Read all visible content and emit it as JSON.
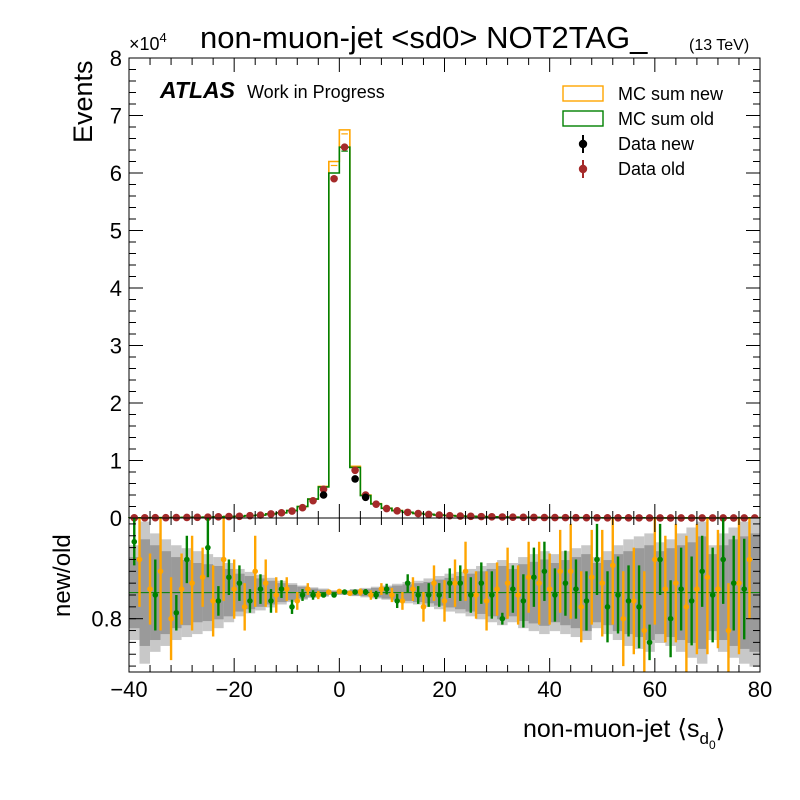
{
  "chart_data": [
    {
      "type": "histogram",
      "title": "non-muon-jet <sd0> NOT2TAG_",
      "energy_label": "(13 TeV)",
      "atlas_label": "ATLAS",
      "atlas_sublabel": "Work in Progress",
      "exponent_label": "×10",
      "exponent_power": "4",
      "ylabel": "Events",
      "xlim": [
        -40,
        80
      ],
      "ylim": [
        0,
        80000
      ],
      "y_ticks": [
        0,
        1,
        2,
        3,
        4,
        5,
        6,
        7,
        8
      ],
      "legend_position": "top-right",
      "legend": [
        {
          "label": "MC sum new",
          "style": "hist",
          "color": "#ffa500"
        },
        {
          "label": "MC sum old",
          "style": "hist",
          "color": "#008000"
        },
        {
          "label": "Data new",
          "style": "points",
          "color": "#000000"
        },
        {
          "label": "Data old",
          "style": "points",
          "color": "#a52a2a"
        }
      ],
      "bin_edges": [
        -40,
        -38,
        -36,
        -34,
        -32,
        -30,
        -28,
        -26,
        -24,
        -22,
        -20,
        -18,
        -16,
        -14,
        -12,
        -10,
        -8,
        -6,
        -4,
        -2,
        0,
        2,
        4,
        6,
        8,
        10,
        12,
        14,
        16,
        18,
        20,
        22,
        24,
        26,
        28,
        30,
        32,
        34,
        36,
        38,
        40,
        42,
        44,
        46,
        48,
        50,
        52,
        54,
        56,
        58,
        60,
        62,
        64,
        66,
        68,
        70,
        72,
        74,
        76,
        78,
        80
      ],
      "series": [
        {
          "name": "MC sum new",
          "color": "#ffa500",
          "values": [
            30,
            40,
            50,
            60,
            80,
            100,
            120,
            150,
            200,
            250,
            300,
            400,
            500,
            700,
            900,
            1300,
            2000,
            3300,
            5500,
            62000,
            67500,
            9000,
            4000,
            2500,
            1700,
            1300,
            1000,
            800,
            650,
            520,
            420,
            350,
            300,
            250,
            210,
            180,
            150,
            130,
            110,
            90,
            80,
            70,
            60,
            50,
            45,
            40,
            35,
            30,
            25,
            22,
            20,
            18,
            15,
            13,
            11,
            10,
            9,
            8,
            7,
            6
          ]
        },
        {
          "name": "MC sum old",
          "color": "#008000",
          "values": [
            30,
            40,
            50,
            60,
            80,
            100,
            120,
            150,
            200,
            250,
            300,
            400,
            500,
            700,
            900,
            1300,
            2000,
            3300,
            5400,
            60000,
            64500,
            8800,
            3900,
            2450,
            1680,
            1280,
            990,
            790,
            640,
            515,
            415,
            345,
            295,
            245,
            205,
            178,
            148,
            128,
            108,
            88,
            78,
            68,
            59,
            49,
            44,
            39,
            34,
            29,
            24,
            21,
            19,
            17,
            14,
            12,
            10,
            9,
            8,
            7,
            6,
            5
          ]
        }
      ],
      "data_points": [
        {
          "name": "Data new",
          "color": "#000000",
          "x": [
            -3,
            3,
            5
          ],
          "y": [
            4000,
            6800,
            3600
          ]
        },
        {
          "name": "Data old",
          "color": "#a52a2a",
          "x": [
            -39,
            -37,
            -35,
            -33,
            -31,
            -29,
            -27,
            -25,
            -23,
            -21,
            -19,
            -17,
            -15,
            -13,
            -11,
            -9,
            -7,
            -5,
            -3,
            -1,
            1,
            3,
            5,
            7,
            9,
            11,
            13,
            15,
            17,
            19,
            21,
            23,
            25,
            27,
            29,
            31,
            33,
            35,
            37,
            39,
            41,
            43,
            45,
            47,
            49,
            51,
            53,
            55,
            57,
            59,
            61,
            63,
            65,
            67,
            69,
            71,
            73,
            75,
            77,
            79
          ],
          "y": [
            30,
            40,
            50,
            60,
            80,
            100,
            120,
            150,
            200,
            250,
            300,
            400,
            500,
            700,
            900,
            1200,
            1800,
            3000,
            5000,
            59000,
            64500,
            8300,
            4000,
            2400,
            1650,
            1250,
            980,
            780,
            630,
            510,
            410,
            340,
            290,
            240,
            200,
            175,
            145,
            125,
            105,
            86,
            76,
            66,
            57,
            48,
            43,
            38,
            33,
            28,
            23,
            20,
            18,
            16,
            13,
            11,
            9,
            8,
            7,
            6,
            5,
            4
          ]
        }
      ]
    },
    {
      "type": "ratio",
      "ylabel": "new/old",
      "xlabel_main": "non-muon-jet ⟨s",
      "xlabel_sub": "d",
      "xlabel_subsub": "0",
      "xlabel_close": "⟩",
      "xlim": [
        -40,
        80
      ],
      "ylim": [
        0.71,
        0.97
      ],
      "y_ticks": [
        0.8
      ],
      "x_ticks": [
        -40,
        -20,
        0,
        20,
        40,
        60,
        80
      ],
      "reference_line": 0.844,
      "band_light_halfwidth": [
        0.08,
        0.12,
        0.1,
        0.09,
        0.08,
        0.075,
        0.07,
        0.065,
        0.06,
        0.05,
        0.04,
        0.035,
        0.03,
        0.025,
        0.02,
        0.016,
        0.012,
        0.009,
        0.007,
        0.004,
        0.004,
        0.006,
        0.008,
        0.01,
        0.012,
        0.015,
        0.018,
        0.02,
        0.024,
        0.028,
        0.032,
        0.035,
        0.04,
        0.045,
        0.05,
        0.055,
        0.05,
        0.06,
        0.065,
        0.07,
        0.065,
        0.07,
        0.075,
        0.08,
        0.06,
        0.07,
        0.08,
        0.09,
        0.095,
        0.1,
        0.085,
        0.09,
        0.1,
        0.11,
        0.12,
        0.08,
        0.1,
        0.11,
        0.12,
        0.125
      ],
      "band_dark_halfwidth": [
        0.06,
        0.09,
        0.08,
        0.07,
        0.06,
        0.055,
        0.05,
        0.048,
        0.045,
        0.04,
        0.032,
        0.028,
        0.024,
        0.02,
        0.016,
        0.013,
        0.01,
        0.007,
        0.005,
        0.003,
        0.003,
        0.005,
        0.006,
        0.008,
        0.01,
        0.012,
        0.014,
        0.016,
        0.018,
        0.022,
        0.025,
        0.028,
        0.032,
        0.036,
        0.04,
        0.045,
        0.04,
        0.048,
        0.052,
        0.056,
        0.05,
        0.055,
        0.06,
        0.065,
        0.05,
        0.055,
        0.065,
        0.07,
        0.075,
        0.08,
        0.07,
        0.075,
        0.08,
        0.085,
        0.095,
        0.065,
        0.08,
        0.09,
        0.095,
        0.1
      ],
      "points": [
        {
          "name": "Data ratio",
          "color": "#008000",
          "x": [
            -39,
            -35,
            -31,
            -29,
            -25,
            -23,
            -21,
            -19,
            -17,
            -15,
            -13,
            -11,
            -9,
            -7,
            -5,
            -3,
            -1,
            1,
            3,
            5,
            7,
            9,
            11,
            13,
            15,
            17,
            19,
            21,
            23,
            25,
            27,
            29,
            31,
            33,
            35,
            37,
            39,
            41,
            43,
            45,
            47,
            49,
            51,
            53,
            55,
            57,
            59,
            61,
            63,
            65,
            67,
            69,
            71,
            73,
            75,
            77
          ],
          "y": [
            0.93,
            0.84,
            0.81,
            0.9,
            0.92,
            0.83,
            0.87,
            0.86,
            0.83,
            0.85,
            0.83,
            0.85,
            0.82,
            0.84,
            0.84,
            0.84,
            0.84,
            0.845,
            0.845,
            0.845,
            0.84,
            0.85,
            0.83,
            0.86,
            0.84,
            0.84,
            0.84,
            0.86,
            0.86,
            0.84,
            0.86,
            0.84,
            0.8,
            0.85,
            0.83,
            0.87,
            0.88,
            0.84,
            0.86,
            0.85,
            0.83,
            0.9,
            0.82,
            0.84,
            0.83,
            0.82,
            0.76,
            0.9,
            0.8,
            0.85,
            0.83,
            0.88,
            0.84,
            0.9,
            0.86,
            0.85
          ],
          "err": [
            0.04,
            0.06,
            0.03,
            0.04,
            0.05,
            0.025,
            0.03,
            0.03,
            0.02,
            0.025,
            0.02,
            0.015,
            0.012,
            0.01,
            0.008,
            0.004,
            0.002,
            0.002,
            0.004,
            0.005,
            0.007,
            0.009,
            0.012,
            0.015,
            0.015,
            0.02,
            0.02,
            0.025,
            0.03,
            0.03,
            0.035,
            0.04,
            0.01,
            0.04,
            0.045,
            0.05,
            0.05,
            0.045,
            0.055,
            0.05,
            0.05,
            0.06,
            0.06,
            0.065,
            0.06,
            0.07,
            0.03,
            0.06,
            0.065,
            0.07,
            0.075,
            0.06,
            0.08,
            0.075,
            0.08,
            0.085
          ]
        },
        {
          "name": "MC ratio",
          "color": "#ffa500",
          "x": [
            -38,
            -36,
            -34,
            -32,
            -30,
            -28,
            -26,
            -24,
            -22,
            -20,
            -18,
            -16,
            -14,
            -12,
            -10,
            -8,
            -6,
            -4,
            -2,
            0,
            2,
            4,
            6,
            8,
            10,
            12,
            14,
            16,
            18,
            20,
            22,
            24,
            26,
            28,
            30,
            32,
            34,
            36,
            38,
            40,
            42,
            44,
            46,
            48,
            50,
            52,
            54,
            56,
            58,
            60,
            62,
            64,
            66,
            68,
            70,
            72,
            74,
            76,
            78
          ],
          "y": [
            0.9,
            0.85,
            0.88,
            0.8,
            0.85,
            0.86,
            0.87,
            0.83,
            0.9,
            0.85,
            0.82,
            0.88,
            0.86,
            0.84,
            0.85,
            0.83,
            0.85,
            0.84,
            0.845,
            0.846,
            0.843,
            0.845,
            0.84,
            0.85,
            0.84,
            0.83,
            0.85,
            0.82,
            0.86,
            0.83,
            0.86,
            0.88,
            0.84,
            0.83,
            0.85,
            0.86,
            0.84,
            0.87,
            0.86,
            0.85,
            0.88,
            0.88,
            0.82,
            0.87,
            0.86,
            0.89,
            0.8,
            0.83,
            0.78,
            0.9,
            0.85,
            0.86,
            0.82,
            0.85,
            0.87,
            0.85,
            0.78,
            0.86,
            0.9
          ],
          "err": [
            0.08,
            0.06,
            0.1,
            0.07,
            0.06,
            0.08,
            0.05,
            0.06,
            0.07,
            0.05,
            0.04,
            0.06,
            0.04,
            0.03,
            0.02,
            0.015,
            0.01,
            0.007,
            0.004,
            0.003,
            0.004,
            0.006,
            0.008,
            0.01,
            0.012,
            0.015,
            0.02,
            0.025,
            0.03,
            0.035,
            0.04,
            0.05,
            0.04,
            0.05,
            0.045,
            0.06,
            0.05,
            0.06,
            0.07,
            0.06,
            0.07,
            0.08,
            0.06,
            0.08,
            0.09,
            0.1,
            0.08,
            0.09,
            0.1,
            0.11,
            0.09,
            0.1,
            0.12,
            0.11,
            0.13,
            0.1,
            0.08,
            0.12,
            0.1
          ]
        }
      ]
    }
  ]
}
